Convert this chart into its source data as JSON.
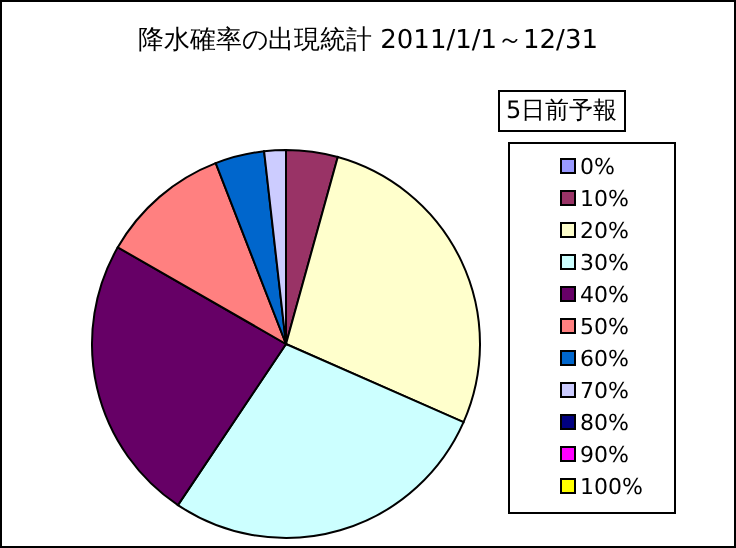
{
  "chart_data": {
    "type": "pie",
    "title": "降水確率の出現統計 2011/1/1～12/31",
    "legend_title": "5日前予報",
    "categories": [
      "0%",
      "10%",
      "20%",
      "30%",
      "40%",
      "50%",
      "60%",
      "70%",
      "80%",
      "90%",
      "100%"
    ],
    "values": [
      0,
      4.3,
      27.3,
      27.8,
      23.9,
      10.8,
      4.1,
      1.8,
      0,
      0,
      0
    ],
    "colors": [
      "#9999ff",
      "#993366",
      "#ffffcc",
      "#ccffff",
      "#660066",
      "#ff8080",
      "#0066cc",
      "#ccccff",
      "#000080",
      "#ff00ff",
      "#ffff00"
    ],
    "legend": "right"
  }
}
